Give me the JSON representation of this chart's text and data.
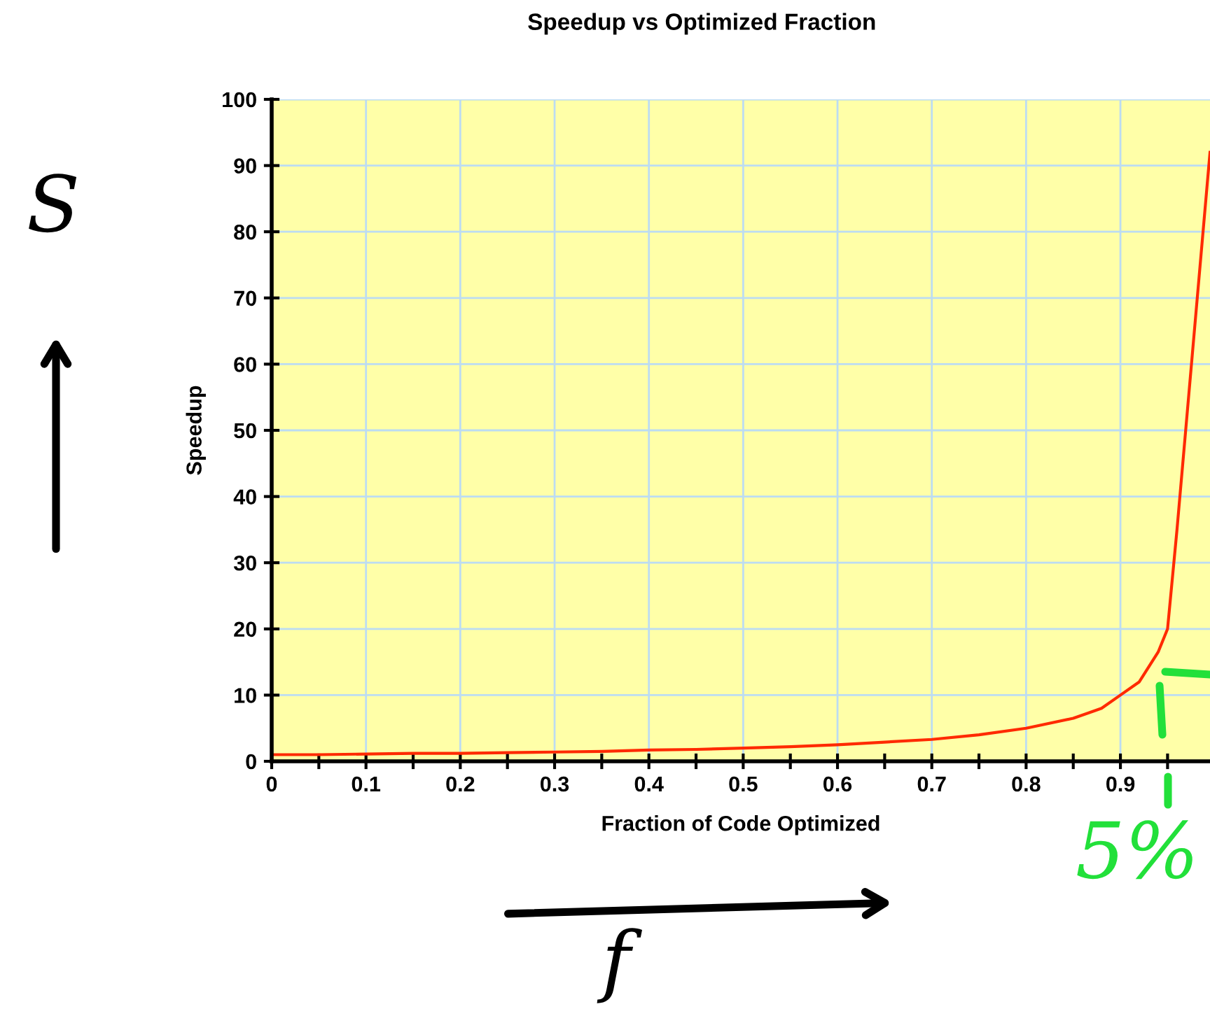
{
  "chart_data": {
    "type": "line",
    "title": "Speedup vs Optimized Fraction",
    "xlabel": "Fraction of Code Optimized",
    "ylabel": "Speedup",
    "x": [
      0,
      0.05,
      0.1,
      0.15,
      0.2,
      0.25,
      0.3,
      0.35,
      0.4,
      0.45,
      0.5,
      0.55,
      0.6,
      0.65,
      0.7,
      0.75,
      0.8,
      0.85,
      0.88,
      0.9,
      0.92,
      0.94,
      0.95,
      0.96,
      0.995
    ],
    "series": [
      {
        "color": "#ff2a00",
        "values": [
          1,
          1,
          1.1,
          1.2,
          1.2,
          1.3,
          1.4,
          1.5,
          1.7,
          1.8,
          2,
          2.2,
          2.5,
          2.9,
          3.3,
          4,
          5,
          6.5,
          8,
          10,
          12,
          16.5,
          20,
          35,
          92
        ]
      }
    ],
    "xlim": [
      0,
      0.995
    ],
    "ylim": [
      0,
      100
    ],
    "xticks": [
      0,
      {
        "value": 0.05,
        "label": null
      },
      0.1,
      {
        "value": 0.15,
        "label": null
      },
      0.2,
      {
        "value": 0.25,
        "label": null
      },
      0.3,
      {
        "value": 0.35,
        "label": null
      },
      0.4,
      {
        "value": 0.45,
        "label": null
      },
      0.5,
      {
        "value": 0.55,
        "label": null
      },
      0.6,
      {
        "value": 0.65,
        "label": null
      },
      0.7,
      {
        "value": 0.75,
        "label": null
      },
      0.8,
      {
        "value": 0.85,
        "label": null
      },
      0.9,
      {
        "value": 0.95,
        "label": null
      }
    ],
    "yticks": [
      0,
      10,
      20,
      30,
      40,
      50,
      60,
      70,
      80,
      90,
      100
    ],
    "grid": true,
    "marker": "none",
    "line_style": "solid",
    "annotations": [
      "S",
      "f",
      "5%"
    ]
  }
}
